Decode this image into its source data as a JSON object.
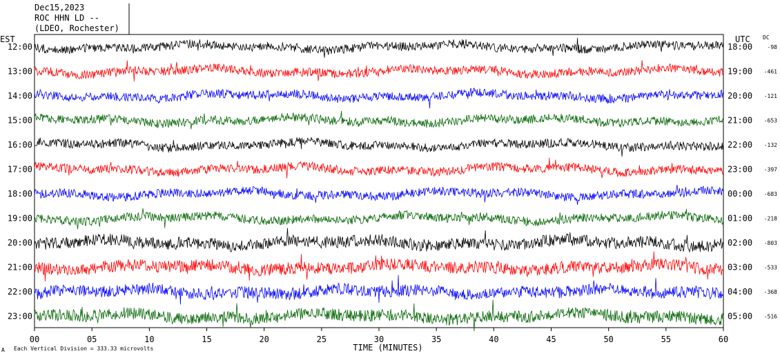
{
  "header": {
    "date": "Dec15,2023",
    "station": "ROC HHN LD --",
    "location": "(LDEO, Rochester)"
  },
  "footer": {
    "mark": "A",
    "scale_note": "Each Vertical Division =  333.33 microvolts"
  },
  "chart_data": {
    "type": "line",
    "title": "",
    "xlabel": "TIME (MINUTES)",
    "xlim": [
      0,
      60
    ],
    "x_ticks": [
      "00",
      "05",
      "10",
      "15",
      "20",
      "25",
      "30",
      "35",
      "40",
      "45",
      "50",
      "55",
      "60"
    ],
    "left_axis_label": "EST",
    "right_axis_label": "UTC",
    "dc_label": "DC",
    "trace_colors": [
      "#000000",
      "#ff0000",
      "#0000ff",
      "#006400"
    ],
    "rows": [
      {
        "est": "12:00",
        "utc": "18:00",
        "dc": "-98"
      },
      {
        "est": "13:00",
        "utc": "19:00",
        "dc": "-461"
      },
      {
        "est": "14:00",
        "utc": "20:00",
        "dc": "-121"
      },
      {
        "est": "15:00",
        "utc": "21:00",
        "dc": "-653"
      },
      {
        "est": "16:00",
        "utc": "22:00",
        "dc": "-132"
      },
      {
        "est": "17:00",
        "utc": "23:00",
        "dc": "-397"
      },
      {
        "est": "18:00",
        "utc": "00:00",
        "dc": "-683"
      },
      {
        "est": "19:00",
        "utc": "01:00",
        "dc": "-218"
      },
      {
        "est": "20:00",
        "utc": "02:00",
        "dc": "-803"
      },
      {
        "est": "21:00",
        "utc": "03:00",
        "dc": "-533"
      },
      {
        "est": "22:00",
        "utc": "04:00",
        "dc": "-368"
      },
      {
        "est": "23:00",
        "utc": "05:00",
        "dc": "-516"
      }
    ]
  }
}
